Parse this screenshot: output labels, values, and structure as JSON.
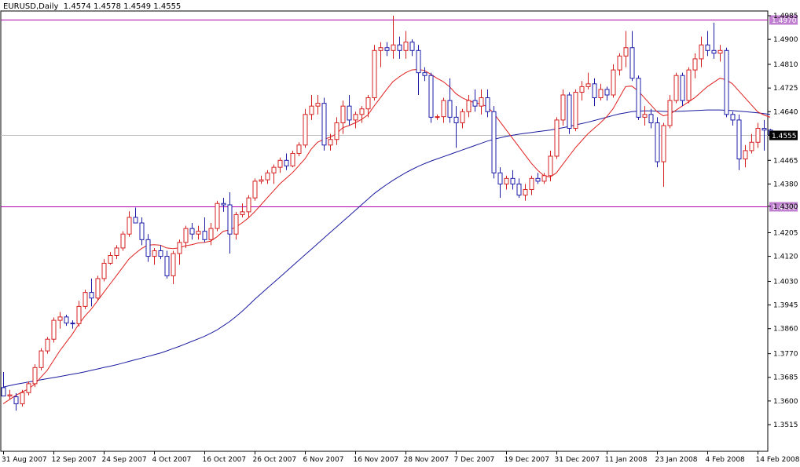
{
  "header": {
    "symbol": "EURUSD,Daily",
    "ohlc": "1.4574 1.4578 1.4549 1.4555",
    "title": "EURUSD,Daily  1.4574 1.4578 1.4549 1.4555"
  },
  "colors": {
    "bull_candle": "#d62020",
    "bear_candle": "#1c1ca8",
    "ma_fast": "#e02020",
    "ma_slow": "#1a1aa0",
    "level_line": "#b000b0",
    "level_label_bg": "#c080d0",
    "current_price_line": "#c0c0c0",
    "current_price_label_bg": "#000000"
  },
  "chart_data": {
    "type": "candlestick",
    "symbol": "EURUSD",
    "timeframe": "Daily",
    "ylim": [
      1.3515,
      1.4985
    ],
    "y_ticks": [
      "1.4985",
      "1.4900",
      "1.4810",
      "1.4725",
      "1.4640",
      "1.4555",
      "1.4465",
      "1.4380",
      "1.4300",
      "1.4205",
      "1.4120",
      "1.4030",
      "1.3945",
      "1.3860",
      "1.3770",
      "1.3685",
      "1.3600",
      "1.3515"
    ],
    "x_tick_labels": [
      "31 Aug 2007",
      "12 Sep 2007",
      "24 Sep 2007",
      "4 Oct 2007",
      "16 Oct 2007",
      "26 Oct 2007",
      "6 Nov 2007",
      "16 Nov 2007",
      "28 Nov 2007",
      "7 Dec 2007",
      "19 Dec 2007",
      "31 Dec 2007",
      "11 Jan 2008",
      "23 Jan 2008",
      "4 Feb 2008",
      "14 Feb 2008"
    ],
    "x_tick_index": [
      0,
      8,
      16,
      24,
      32,
      40,
      48,
      56,
      64,
      72,
      80,
      88,
      96,
      104,
      112,
      120
    ],
    "horizontal_levels": [
      {
        "value": 1.497,
        "label": "1.4970"
      },
      {
        "value": 1.43,
        "label": "1.4300"
      }
    ],
    "current_price": {
      "value": 1.4555,
      "label": "1.4555"
    },
    "candles": [
      [
        1.3648,
        1.3704,
        1.362,
        1.3618
      ],
      [
        1.3618,
        1.364,
        1.3605,
        1.3622
      ],
      [
        1.3615,
        1.3628,
        1.3565,
        1.359
      ],
      [
        1.359,
        1.364,
        1.358,
        1.363
      ],
      [
        1.363,
        1.367,
        1.362,
        1.3662
      ],
      [
        1.3662,
        1.3732,
        1.365,
        1.372
      ],
      [
        1.372,
        1.379,
        1.371,
        1.378
      ],
      [
        1.378,
        1.383,
        1.377,
        1.3822
      ],
      [
        1.3822,
        1.39,
        1.381,
        1.389
      ],
      [
        1.389,
        1.392,
        1.386,
        1.3902
      ],
      [
        1.3902,
        1.391,
        1.387,
        1.388
      ],
      [
        1.388,
        1.389,
        1.386,
        1.3878
      ],
      [
        1.3878,
        1.396,
        1.3868,
        1.394
      ],
      [
        1.394,
        1.4,
        1.393,
        1.399
      ],
      [
        1.399,
        1.404,
        1.394,
        1.397
      ],
      [
        1.397,
        1.405,
        1.396,
        1.404
      ],
      [
        1.404,
        1.411,
        1.403,
        1.4095
      ],
      [
        1.4095,
        1.4135,
        1.409,
        1.4123
      ],
      [
        1.4123,
        1.416,
        1.411,
        1.415
      ],
      [
        1.415,
        1.421,
        1.414,
        1.42
      ],
      [
        1.42,
        1.4282,
        1.419,
        1.426
      ],
      [
        1.426,
        1.4295,
        1.424,
        1.424
      ],
      [
        1.424,
        1.426,
        1.416,
        1.418
      ],
      [
        1.418,
        1.42,
        1.41,
        1.412
      ],
      [
        1.412,
        1.415,
        1.409,
        1.414
      ],
      [
        1.414,
        1.416,
        1.411,
        1.412
      ],
      [
        1.412,
        1.414,
        1.404,
        1.405
      ],
      [
        1.405,
        1.414,
        1.402,
        1.413
      ],
      [
        1.413,
        1.418,
        1.409,
        1.417
      ],
      [
        1.417,
        1.423,
        1.415,
        1.422
      ],
      [
        1.422,
        1.424,
        1.418,
        1.42
      ],
      [
        1.42,
        1.423,
        1.418,
        1.421
      ],
      [
        1.421,
        1.426,
        1.417,
        1.418
      ],
      [
        1.418,
        1.424,
        1.416,
        1.422
      ],
      [
        1.422,
        1.432,
        1.421,
        1.431
      ],
      [
        1.431,
        1.433,
        1.428,
        1.4305
      ],
      [
        1.4305,
        1.435,
        1.413,
        1.42
      ],
      [
        1.42,
        1.428,
        1.418,
        1.427
      ],
      [
        1.427,
        1.431,
        1.426,
        1.428
      ],
      [
        1.428,
        1.434,
        1.426,
        1.433
      ],
      [
        1.433,
        1.44,
        1.432,
        1.439
      ],
      [
        1.439,
        1.441,
        1.438,
        1.4395
      ],
      [
        1.4395,
        1.443,
        1.438,
        1.442
      ],
      [
        1.442,
        1.445,
        1.438,
        1.444
      ],
      [
        1.444,
        1.4475,
        1.442,
        1.4465
      ],
      [
        1.4465,
        1.449,
        1.443,
        1.4445
      ],
      [
        1.4445,
        1.45,
        1.444,
        1.449
      ],
      [
        1.449,
        1.453,
        1.448,
        1.452
      ],
      [
        1.452,
        1.465,
        1.451,
        1.463
      ],
      [
        1.463,
        1.47,
        1.461,
        1.466
      ],
      [
        1.466,
        1.47,
        1.463,
        1.467
      ],
      [
        1.467,
        1.469,
        1.45,
        1.452
      ],
      [
        1.452,
        1.456,
        1.45,
        1.454
      ],
      [
        1.454,
        1.462,
        1.452,
        1.46
      ],
      [
        1.46,
        1.468,
        1.456,
        1.466
      ],
      [
        1.466,
        1.47,
        1.459,
        1.461
      ],
      [
        1.461,
        1.464,
        1.458,
        1.463
      ],
      [
        1.463,
        1.466,
        1.46,
        1.465
      ],
      [
        1.465,
        1.47,
        1.462,
        1.469
      ],
      [
        1.469,
        1.488,
        1.468,
        1.486
      ],
      [
        1.486,
        1.489,
        1.48,
        1.487
      ],
      [
        1.487,
        1.489,
        1.484,
        1.486
      ],
      [
        1.486,
        1.4985,
        1.483,
        1.488
      ],
      [
        1.488,
        1.491,
        1.483,
        1.486
      ],
      [
        1.486,
        1.493,
        1.483,
        1.489
      ],
      [
        1.489,
        1.49,
        1.484,
        1.486
      ],
      [
        1.486,
        1.488,
        1.47,
        1.478
      ],
      [
        1.478,
        1.48,
        1.475,
        1.477
      ],
      [
        1.477,
        1.478,
        1.46,
        1.462
      ],
      [
        1.462,
        1.463,
        1.461,
        1.4622
      ],
      [
        1.4622,
        1.469,
        1.46,
        1.468
      ],
      [
        1.468,
        1.476,
        1.46,
        1.462
      ],
      [
        1.462,
        1.466,
        1.451,
        1.46
      ],
      [
        1.46,
        1.465,
        1.458,
        1.464
      ],
      [
        1.464,
        1.47,
        1.462,
        1.468
      ],
      [
        1.468,
        1.472,
        1.464,
        1.466
      ],
      [
        1.466,
        1.472,
        1.463,
        1.469
      ],
      [
        1.469,
        1.472,
        1.462,
        1.464
      ],
      [
        1.464,
        1.466,
        1.44,
        1.442
      ],
      [
        1.442,
        1.444,
        1.433,
        1.438
      ],
      [
        1.438,
        1.441,
        1.436,
        1.44
      ],
      [
        1.44,
        1.443,
        1.436,
        1.438
      ],
      [
        1.438,
        1.44,
        1.433,
        1.434
      ],
      [
        1.434,
        1.438,
        1.432,
        1.436
      ],
      [
        1.436,
        1.441,
        1.434,
        1.44
      ],
      [
        1.44,
        1.442,
        1.438,
        1.439
      ],
      [
        1.439,
        1.442,
        1.438,
        1.441
      ],
      [
        1.441,
        1.45,
        1.439,
        1.448
      ],
      [
        1.448,
        1.462,
        1.447,
        1.461
      ],
      [
        1.461,
        1.472,
        1.459,
        1.47
      ],
      [
        1.47,
        1.471,
        1.456,
        1.458
      ],
      [
        1.458,
        1.472,
        1.457,
        1.471
      ],
      [
        1.471,
        1.475,
        1.468,
        1.473
      ],
      [
        1.473,
        1.478,
        1.472,
        1.474
      ],
      [
        1.474,
        1.476,
        1.466,
        1.469
      ],
      [
        1.469,
        1.474,
        1.468,
        1.472
      ],
      [
        1.472,
        1.473,
        1.468,
        1.47
      ],
      [
        1.47,
        1.481,
        1.469,
        1.479
      ],
      [
        1.479,
        1.485,
        1.477,
        1.484
      ],
      [
        1.484,
        1.493,
        1.48,
        1.487
      ],
      [
        1.487,
        1.493,
        1.475,
        1.476
      ],
      [
        1.476,
        1.477,
        1.461,
        1.462
      ],
      [
        1.462,
        1.466,
        1.459,
        1.463
      ],
      [
        1.463,
        1.465,
        1.458,
        1.46
      ],
      [
        1.46,
        1.462,
        1.444,
        1.446
      ],
      [
        1.446,
        1.46,
        1.437,
        1.459
      ],
      [
        1.459,
        1.47,
        1.458,
        1.468
      ],
      [
        1.468,
        1.478,
        1.467,
        1.477
      ],
      [
        1.477,
        1.478,
        1.466,
        1.468
      ],
      [
        1.468,
        1.48,
        1.467,
        1.479
      ],
      [
        1.479,
        1.485,
        1.476,
        1.483
      ],
      [
        1.483,
        1.491,
        1.48,
        1.488
      ],
      [
        1.488,
        1.493,
        1.484,
        1.486
      ],
      [
        1.486,
        1.496,
        1.483,
        1.485
      ],
      [
        1.485,
        1.488,
        1.482,
        1.486
      ],
      [
        1.486,
        1.487,
        1.462,
        1.463
      ],
      [
        1.463,
        1.464,
        1.459,
        1.461
      ],
      [
        1.461,
        1.463,
        1.443,
        1.447
      ],
      [
        1.447,
        1.452,
        1.444,
        1.45
      ],
      [
        1.45,
        1.456,
        1.449,
        1.453
      ],
      [
        1.453,
        1.46,
        1.451,
        1.458
      ],
      [
        1.458,
        1.461,
        1.45,
        1.4574
      ],
      [
        1.4574,
        1.4578,
        1.4549,
        1.4555
      ]
    ],
    "ma_fast": {
      "name": "",
      "values": [
        1.359,
        1.3605,
        1.362,
        1.3632,
        1.3643,
        1.366,
        1.3685,
        1.371,
        1.3745,
        1.378,
        1.381,
        1.384,
        1.3875,
        1.3905,
        1.393,
        1.396,
        1.399,
        1.402,
        1.405,
        1.408,
        1.411,
        1.413,
        1.4148,
        1.416,
        1.4162,
        1.416,
        1.415,
        1.4148,
        1.415,
        1.4158,
        1.4162,
        1.4168,
        1.417,
        1.4175,
        1.419,
        1.421,
        1.4215,
        1.4225,
        1.424,
        1.4258,
        1.428,
        1.4305,
        1.433,
        1.4355,
        1.438,
        1.44,
        1.442,
        1.4445,
        1.447,
        1.4505,
        1.453,
        1.454,
        1.4548,
        1.456,
        1.4582,
        1.459,
        1.46,
        1.4612,
        1.4628,
        1.466,
        1.469,
        1.472,
        1.4748,
        1.4765,
        1.478,
        1.479,
        1.4792,
        1.4788,
        1.4775,
        1.476,
        1.4748,
        1.473,
        1.4705,
        1.469,
        1.468,
        1.4672,
        1.4668,
        1.4658,
        1.4635,
        1.4605,
        1.4575,
        1.4545,
        1.4515,
        1.4485,
        1.4455,
        1.443,
        1.441,
        1.4405,
        1.442,
        1.445,
        1.448,
        1.451,
        1.4535,
        1.456,
        1.458,
        1.46,
        1.4622,
        1.465,
        1.469,
        1.473,
        1.4732,
        1.4715,
        1.469,
        1.4665,
        1.464,
        1.4625,
        1.463,
        1.4645,
        1.466,
        1.4675,
        1.469,
        1.471,
        1.473,
        1.4745,
        1.476,
        1.4755,
        1.474,
        1.4715,
        1.469,
        1.4665,
        1.464,
        1.4628,
        1.462
      ]
    },
    "ma_slow": {
      "name": "",
      "values": [
        1.365,
        1.3655,
        1.366,
        1.3664,
        1.3668,
        1.3672,
        1.3676,
        1.368,
        1.3684,
        1.3688,
        1.3692,
        1.3696,
        1.37,
        1.3705,
        1.371,
        1.3715,
        1.372,
        1.3725,
        1.373,
        1.3736,
        1.3742,
        1.3748,
        1.3754,
        1.376,
        1.3766,
        1.3772,
        1.378,
        1.3788,
        1.3796,
        1.3805,
        1.3814,
        1.3823,
        1.3832,
        1.3843,
        1.3855,
        1.387,
        1.3885,
        1.3903,
        1.3922,
        1.3943,
        1.3965,
        1.3985,
        1.4005,
        1.4025,
        1.4045,
        1.4065,
        1.4085,
        1.4105,
        1.4125,
        1.4145,
        1.4165,
        1.4185,
        1.4205,
        1.4225,
        1.4245,
        1.4265,
        1.4285,
        1.4305,
        1.4325,
        1.4345,
        1.4362,
        1.4378,
        1.4393,
        1.4407,
        1.442,
        1.4432,
        1.4443,
        1.4453,
        1.4462,
        1.447,
        1.4478,
        1.4486,
        1.4494,
        1.4502,
        1.451,
        1.4518,
        1.4526,
        1.4534,
        1.454,
        1.4546,
        1.4551,
        1.4555,
        1.4559,
        1.4562,
        1.4565,
        1.4568,
        1.4571,
        1.4574,
        1.4578,
        1.4582,
        1.4587,
        1.4592,
        1.4597,
        1.4602,
        1.4608,
        1.4614,
        1.462,
        1.4626,
        1.4632,
        1.4636,
        1.464,
        1.4642,
        1.4643,
        1.4643,
        1.4642,
        1.4641,
        1.464,
        1.4641,
        1.4642,
        1.4643,
        1.4644,
        1.4645,
        1.4646,
        1.4646,
        1.4646,
        1.4645,
        1.4644,
        1.4642,
        1.464,
        1.4638,
        1.4636,
        1.4633,
        1.463
      ]
    }
  }
}
